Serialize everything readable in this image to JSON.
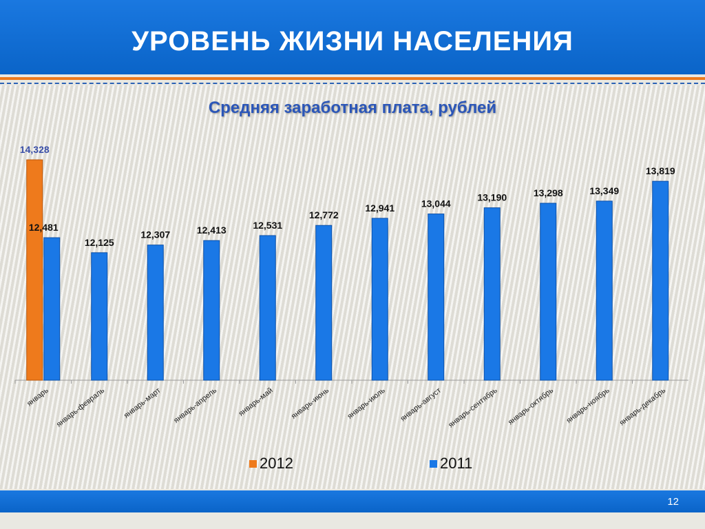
{
  "slide": {
    "title": "УРОВЕНЬ ЖИЗНИ НАСЕЛЕНИЯ",
    "page_number": "12",
    "header_color": "#0a64c8",
    "accent_color": "#ee7a1c"
  },
  "chart_data": {
    "type": "bar",
    "title": "Средняя заработная плата, рублей",
    "xlabel": "",
    "ylabel": "",
    "legend_position": "bottom",
    "grid": false,
    "categories": [
      "январь",
      "январь-февраль",
      "январь-март",
      "январь-апрель",
      "январь-май",
      "январь-июнь",
      "январь-июль",
      "январь-август",
      "январь-сентябрь",
      "январь-октябрь",
      "январь-ноябрь",
      "январь-декабрь"
    ],
    "series": [
      {
        "name": "2012",
        "color": "#ee7a1c",
        "values": [
          14328,
          null,
          null,
          null,
          null,
          null,
          null,
          null,
          null,
          null,
          null,
          null
        ],
        "labels": [
          "14,328",
          "",
          "",
          "",
          "",
          "",
          "",
          "",
          "",
          "",
          "",
          ""
        ]
      },
      {
        "name": "2011",
        "color": "#1a78e6",
        "values": [
          12481,
          12125,
          12307,
          12413,
          12531,
          12772,
          12941,
          13044,
          13190,
          13298,
          13349,
          13819
        ],
        "labels": [
          "12,481",
          "12,125",
          "12,307",
          "12,413",
          "12,531",
          "12,772",
          "12,941",
          "13,044",
          "13,190",
          "13,298",
          "13,349",
          "13,819"
        ]
      }
    ]
  }
}
